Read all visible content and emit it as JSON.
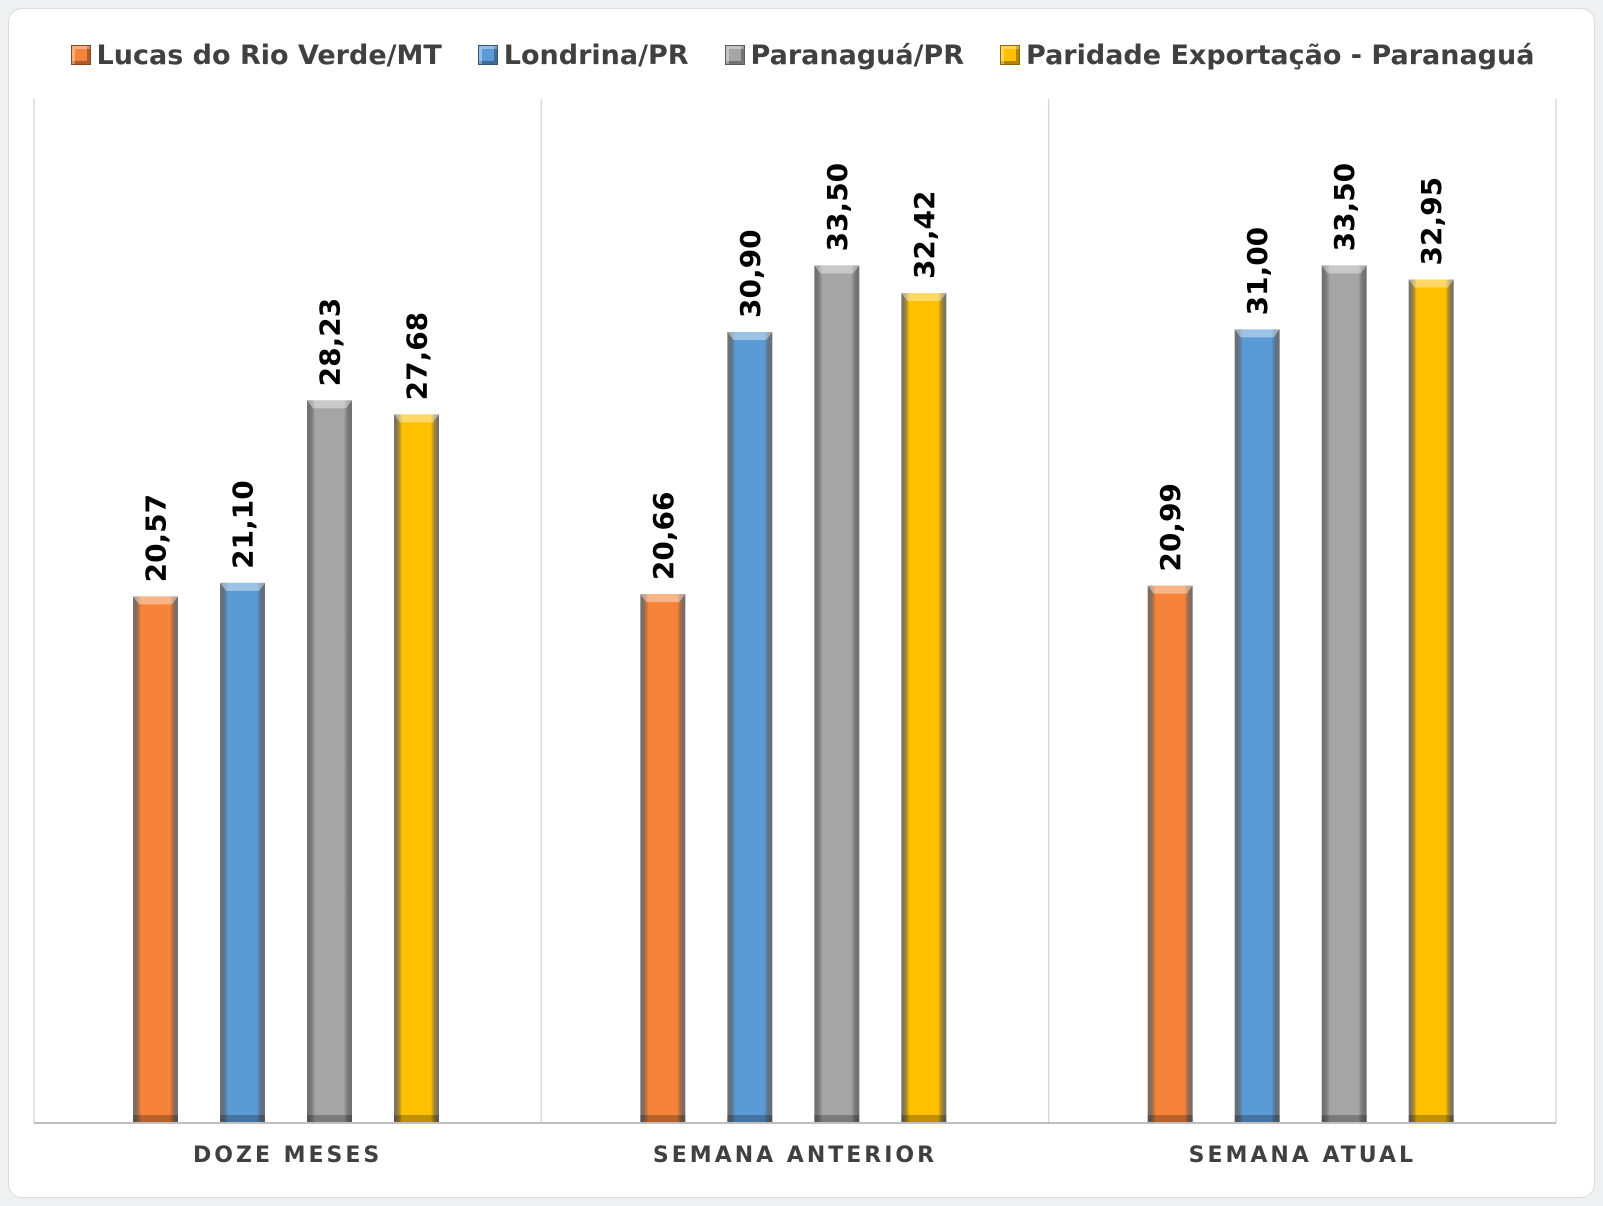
{
  "chart_data": {
    "type": "bar",
    "categories": [
      "DOZE MESES",
      "SEMANA ANTERIOR",
      "SEMANA ATUAL"
    ],
    "series": [
      {
        "name": "Lucas do Rio Verde/MT",
        "color": "#f5843a",
        "values": [
          20.57,
          20.66,
          20.99
        ],
        "labels": [
          "20,57",
          "20,66",
          "20,99"
        ]
      },
      {
        "name": "Londrina/PR",
        "color": "#5b9bd5",
        "values": [
          21.1,
          30.9,
          31.0
        ],
        "labels": [
          "21,10",
          "30,90",
          "31,00"
        ]
      },
      {
        "name": "Paranaguá/PR",
        "color": "#a5a5a5",
        "values": [
          28.23,
          33.5,
          33.5
        ],
        "labels": [
          "28,23",
          "33,50",
          "33,50"
        ]
      },
      {
        "name": "Paridade Exportação - Paranaguá",
        "color": "#ffc000",
        "values": [
          27.68,
          32.42,
          32.95
        ],
        "labels": [
          "27,68",
          "32,42",
          "32,95"
        ]
      }
    ],
    "ylim": [
      0,
      40
    ],
    "grid": false,
    "legend_position": "top"
  }
}
